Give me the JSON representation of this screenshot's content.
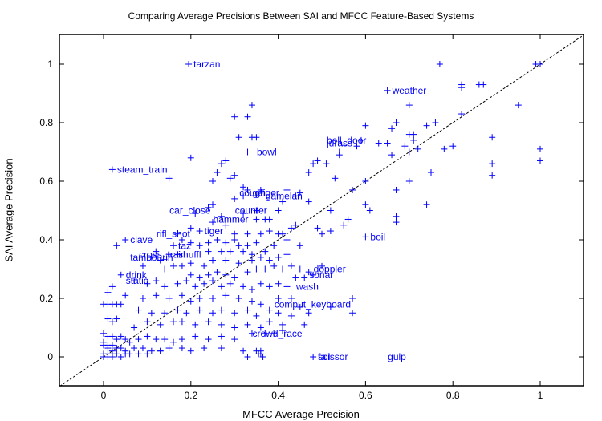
{
  "chart_data": {
    "type": "scatter",
    "title": "Comparing Average Precisions Between SAI and MFCC Feature-Based Systems",
    "xlabel": "MFCC Average Precision",
    "ylabel": "SAI Average Precision",
    "xlim": [
      -0.1,
      1.1
    ],
    "ylim": [
      -0.1,
      1.1
    ],
    "xticks": [
      "0",
      "0.2",
      "0.4",
      "0.6",
      "0.8",
      "1"
    ],
    "yticks": [
      "0",
      "0.2",
      "0.4",
      "0.6",
      "0.8",
      "1"
    ],
    "grid": false,
    "legend": null,
    "marker": "+",
    "marker_color": "#0000ff",
    "reference_line": {
      "style": "dashed",
      "color": "#000000",
      "from": [
        -0.1,
        -0.1
      ],
      "to": [
        1.1,
        1.1
      ],
      "description": "y = x"
    },
    "labeled_points": [
      {
        "label": "tarzan",
        "x": 0.195,
        "y": 1.0
      },
      {
        "label": "weather",
        "x": 0.65,
        "y": 0.91
      },
      {
        "label": "bell_door",
        "x": 0.5,
        "y": 0.74
      },
      {
        "label": "jurass",
        "x": 0.5,
        "y": 0.73
      },
      {
        "label": "bowl",
        "x": 0.34,
        "y": 0.7
      },
      {
        "label": "steam_train",
        "x": 0.02,
        "y": 0.64
      },
      {
        "label": "cough",
        "x": 0.3,
        "y": 0.56
      },
      {
        "label": "geiger",
        "x": 0.33,
        "y": 0.56
      },
      {
        "label": "gamelan",
        "x": 0.36,
        "y": 0.55
      },
      {
        "label": "car_close",
        "x": 0.14,
        "y": 0.5
      },
      {
        "label": "counter",
        "x": 0.29,
        "y": 0.5
      },
      {
        "label": "hammer",
        "x": 0.24,
        "y": 0.47
      },
      {
        "label": "tiger",
        "x": 0.22,
        "y": 0.43
      },
      {
        "label": "boil",
        "x": 0.6,
        "y": 0.41
      },
      {
        "label": "rifl_shot",
        "x": 0.11,
        "y": 0.42
      },
      {
        "label": "clave",
        "x": 0.05,
        "y": 0.4
      },
      {
        "label": "taz",
        "x": 0.16,
        "y": 0.38
      },
      {
        "label": "cross_train",
        "x": 0.07,
        "y": 0.35
      },
      {
        "label": "shuffl",
        "x": 0.16,
        "y": 0.35
      },
      {
        "label": "tambourin",
        "x": 0.05,
        "y": 0.34
      },
      {
        "label": "doppler",
        "x": 0.47,
        "y": 0.3
      },
      {
        "label": "sonar",
        "x": 0.46,
        "y": 0.28
      },
      {
        "label": "drink",
        "x": 0.04,
        "y": 0.28
      },
      {
        "label": "static",
        "x": 0.04,
        "y": 0.26
      },
      {
        "label": "wash",
        "x": 0.43,
        "y": 0.24
      },
      {
        "label": "comput_keyboard",
        "x": 0.38,
        "y": 0.18
      },
      {
        "label": "crowd_race",
        "x": 0.33,
        "y": 0.08
      },
      {
        "label": "fall",
        "x": 0.48,
        "y": 0.0
      },
      {
        "label": "scissor",
        "x": 0.48,
        "y": 0.0
      },
      {
        "label": "gulp",
        "x": 0.64,
        "y": 0.0
      }
    ],
    "points": [
      [
        0.195,
        1.0
      ],
      [
        0.65,
        0.91
      ],
      [
        0.34,
        0.86
      ],
      [
        0.33,
        0.82
      ],
      [
        0.3,
        0.82
      ],
      [
        0.7,
        0.86
      ],
      [
        0.77,
        1.0
      ],
      [
        0.82,
        0.93
      ],
      [
        0.82,
        0.92
      ],
      [
        0.86,
        0.93
      ],
      [
        0.87,
        0.93
      ],
      [
        0.95,
        0.86
      ],
      [
        0.99,
        1.0
      ],
      [
        1.0,
        1.0
      ],
      [
        0.31,
        0.75
      ],
      [
        0.34,
        0.75
      ],
      [
        0.35,
        0.75
      ],
      [
        0.6,
        0.79
      ],
      [
        0.66,
        0.78
      ],
      [
        0.67,
        0.8
      ],
      [
        0.7,
        0.76
      ],
      [
        0.71,
        0.76
      ],
      [
        0.74,
        0.79
      ],
      [
        0.76,
        0.8
      ],
      [
        0.82,
        0.83
      ],
      [
        0.89,
        0.75
      ],
      [
        1.0,
        0.71
      ],
      [
        1.0,
        0.67
      ],
      [
        0.2,
        0.68
      ],
      [
        0.02,
        0.64
      ],
      [
        0.15,
        0.61
      ],
      [
        0.27,
        0.66
      ],
      [
        0.28,
        0.67
      ],
      [
        0.33,
        0.7
      ],
      [
        0.26,
        0.63
      ],
      [
        0.25,
        0.6
      ],
      [
        0.3,
        0.62
      ],
      [
        0.29,
        0.61
      ],
      [
        0.32,
        0.58
      ],
      [
        0.36,
        0.57
      ],
      [
        0.42,
        0.57
      ],
      [
        0.47,
        0.63
      ],
      [
        0.48,
        0.66
      ],
      [
        0.49,
        0.67
      ],
      [
        0.51,
        0.66
      ],
      [
        0.54,
        0.7
      ],
      [
        0.54,
        0.69
      ],
      [
        0.58,
        0.72
      ],
      [
        0.59,
        0.74
      ],
      [
        0.63,
        0.73
      ],
      [
        0.65,
        0.73
      ],
      [
        0.66,
        0.69
      ],
      [
        0.69,
        0.72
      ],
      [
        0.7,
        0.7
      ],
      [
        0.71,
        0.74
      ],
      [
        0.72,
        0.71
      ],
      [
        0.78,
        0.71
      ],
      [
        0.8,
        0.72
      ],
      [
        0.89,
        0.66
      ],
      [
        0.89,
        0.62
      ],
      [
        0.75,
        0.63
      ],
      [
        0.7,
        0.6
      ],
      [
        0.53,
        0.61
      ],
      [
        0.57,
        0.57
      ],
      [
        0.6,
        0.6
      ],
      [
        0.6,
        0.52
      ],
      [
        0.61,
        0.5
      ],
      [
        0.67,
        0.57
      ],
      [
        0.67,
        0.48
      ],
      [
        0.74,
        0.52
      ],
      [
        0.56,
        0.47
      ],
      [
        0.52,
        0.5
      ],
      [
        0.47,
        0.53
      ],
      [
        0.45,
        0.56
      ],
      [
        0.44,
        0.55
      ],
      [
        0.41,
        0.53
      ],
      [
        0.4,
        0.5
      ],
      [
        0.37,
        0.47
      ],
      [
        0.38,
        0.47
      ],
      [
        0.4,
        0.42
      ],
      [
        0.43,
        0.44
      ],
      [
        0.44,
        0.45
      ],
      [
        0.49,
        0.44
      ],
      [
        0.5,
        0.42
      ],
      [
        0.52,
        0.43
      ],
      [
        0.55,
        0.45
      ],
      [
        0.6,
        0.41
      ],
      [
        0.45,
        0.38
      ],
      [
        0.42,
        0.4
      ],
      [
        0.41,
        0.42
      ],
      [
        0.39,
        0.38
      ],
      [
        0.37,
        0.36
      ],
      [
        0.33,
        0.57
      ],
      [
        0.32,
        0.55
      ],
      [
        0.3,
        0.54
      ],
      [
        0.25,
        0.52
      ],
      [
        0.24,
        0.51
      ],
      [
        0.27,
        0.48
      ],
      [
        0.25,
        0.46
      ],
      [
        0.21,
        0.49
      ],
      [
        0.32,
        0.49
      ],
      [
        0.35,
        0.5
      ],
      [
        0.35,
        0.47
      ],
      [
        0.28,
        0.45
      ],
      [
        0.22,
        0.43
      ],
      [
        0.2,
        0.44
      ],
      [
        0.3,
        0.42
      ],
      [
        0.33,
        0.42
      ],
      [
        0.36,
        0.42
      ],
      [
        0.38,
        0.43
      ],
      [
        0.17,
        0.42
      ],
      [
        0.18,
        0.4
      ],
      [
        0.2,
        0.39
      ],
      [
        0.22,
        0.38
      ],
      [
        0.24,
        0.39
      ],
      [
        0.26,
        0.4
      ],
      [
        0.28,
        0.39
      ],
      [
        0.3,
        0.4
      ],
      [
        0.31,
        0.38
      ],
      [
        0.33,
        0.38
      ],
      [
        0.35,
        0.39
      ],
      [
        0.24,
        0.36
      ],
      [
        0.27,
        0.36
      ],
      [
        0.29,
        0.36
      ],
      [
        0.32,
        0.36
      ],
      [
        0.34,
        0.35
      ],
      [
        0.16,
        0.38
      ],
      [
        0.05,
        0.4
      ],
      [
        0.03,
        0.38
      ],
      [
        0.12,
        0.36
      ],
      [
        0.15,
        0.35
      ],
      [
        0.17,
        0.35
      ],
      [
        0.11,
        0.34
      ],
      [
        0.13,
        0.33
      ],
      [
        0.09,
        0.31
      ],
      [
        0.14,
        0.3
      ],
      [
        0.16,
        0.31
      ],
      [
        0.18,
        0.31
      ],
      [
        0.2,
        0.32
      ],
      [
        0.23,
        0.31
      ],
      [
        0.25,
        0.33
      ],
      [
        0.28,
        0.33
      ],
      [
        0.31,
        0.32
      ],
      [
        0.34,
        0.33
      ],
      [
        0.36,
        0.34
      ],
      [
        0.38,
        0.33
      ],
      [
        0.4,
        0.34
      ],
      [
        0.42,
        0.35
      ],
      [
        0.2,
        0.28
      ],
      [
        0.22,
        0.27
      ],
      [
        0.24,
        0.28
      ],
      [
        0.26,
        0.29
      ],
      [
        0.28,
        0.28
      ],
      [
        0.3,
        0.27
      ],
      [
        0.33,
        0.29
      ],
      [
        0.35,
        0.3
      ],
      [
        0.37,
        0.3
      ],
      [
        0.39,
        0.31
      ],
      [
        0.41,
        0.3
      ],
      [
        0.43,
        0.31
      ],
      [
        0.45,
        0.3
      ],
      [
        0.47,
        0.29
      ],
      [
        0.5,
        0.31
      ],
      [
        0.44,
        0.27
      ],
      [
        0.46,
        0.27
      ],
      [
        0.48,
        0.28
      ],
      [
        0.04,
        0.28
      ],
      [
        0.07,
        0.26
      ],
      [
        0.1,
        0.25
      ],
      [
        0.12,
        0.26
      ],
      [
        0.14,
        0.24
      ],
      [
        0.17,
        0.25
      ],
      [
        0.19,
        0.26
      ],
      [
        0.21,
        0.24
      ],
      [
        0.23,
        0.25
      ],
      [
        0.25,
        0.26
      ],
      [
        0.27,
        0.24
      ],
      [
        0.29,
        0.25
      ],
      [
        0.32,
        0.24
      ],
      [
        0.34,
        0.23
      ],
      [
        0.36,
        0.25
      ],
      [
        0.38,
        0.24
      ],
      [
        0.4,
        0.25
      ],
      [
        0.42,
        0.24
      ],
      [
        0.02,
        0.24
      ],
      [
        0.01,
        0.22
      ],
      [
        0.05,
        0.21
      ],
      [
        0.09,
        0.2
      ],
      [
        0.12,
        0.21
      ],
      [
        0.15,
        0.2
      ],
      [
        0.18,
        0.21
      ],
      [
        0.2,
        0.19
      ],
      [
        0.22,
        0.2
      ],
      [
        0.25,
        0.2
      ],
      [
        0.28,
        0.21
      ],
      [
        0.31,
        0.2
      ],
      [
        0.34,
        0.19
      ],
      [
        0.36,
        0.18
      ],
      [
        0.4,
        0.2
      ],
      [
        0.43,
        0.2
      ],
      [
        0.45,
        0.17
      ],
      [
        0.0,
        0.18
      ],
      [
        0.01,
        0.18
      ],
      [
        0.02,
        0.18
      ],
      [
        0.03,
        0.18
      ],
      [
        0.04,
        0.18
      ],
      [
        0.08,
        0.16
      ],
      [
        0.11,
        0.15
      ],
      [
        0.14,
        0.15
      ],
      [
        0.17,
        0.16
      ],
      [
        0.19,
        0.15
      ],
      [
        0.22,
        0.16
      ],
      [
        0.25,
        0.15
      ],
      [
        0.27,
        0.16
      ],
      [
        0.3,
        0.15
      ],
      [
        0.33,
        0.16
      ],
      [
        0.35,
        0.14
      ],
      [
        0.38,
        0.16
      ],
      [
        0.4,
        0.15
      ],
      [
        0.43,
        0.14
      ],
      [
        0.47,
        0.15
      ],
      [
        0.52,
        0.17
      ],
      [
        0.57,
        0.15
      ],
      [
        0.01,
        0.13
      ],
      [
        0.02,
        0.12
      ],
      [
        0.03,
        0.13
      ],
      [
        0.07,
        0.1
      ],
      [
        0.1,
        0.12
      ],
      [
        0.13,
        0.11
      ],
      [
        0.16,
        0.12
      ],
      [
        0.18,
        0.12
      ],
      [
        0.21,
        0.11
      ],
      [
        0.24,
        0.12
      ],
      [
        0.27,
        0.11
      ],
      [
        0.3,
        0.1
      ],
      [
        0.33,
        0.11
      ],
      [
        0.36,
        0.1
      ],
      [
        0.38,
        0.12
      ],
      [
        0.41,
        0.11
      ],
      [
        0.46,
        0.11
      ],
      [
        0.0,
        0.08
      ],
      [
        0.01,
        0.07
      ],
      [
        0.02,
        0.07
      ],
      [
        0.03,
        0.06
      ],
      [
        0.04,
        0.07
      ],
      [
        0.05,
        0.06
      ],
      [
        0.06,
        0.05
      ],
      [
        0.08,
        0.06
      ],
      [
        0.1,
        0.07
      ],
      [
        0.12,
        0.06
      ],
      [
        0.14,
        0.06
      ],
      [
        0.16,
        0.05
      ],
      [
        0.18,
        0.06
      ],
      [
        0.21,
        0.07
      ],
      [
        0.24,
        0.06
      ],
      [
        0.27,
        0.07
      ],
      [
        0.3,
        0.06
      ],
      [
        0.34,
        0.08
      ],
      [
        0.37,
        0.08
      ],
      [
        0.39,
        0.08
      ],
      [
        0.41,
        0.09
      ],
      [
        0.0,
        0.05
      ],
      [
        0.0,
        0.04
      ],
      [
        0.01,
        0.04
      ],
      [
        0.01,
        0.03
      ],
      [
        0.02,
        0.04
      ],
      [
        0.02,
        0.02
      ],
      [
        0.03,
        0.03
      ],
      [
        0.04,
        0.03
      ],
      [
        0.05,
        0.02
      ],
      [
        0.07,
        0.03
      ],
      [
        0.09,
        0.03
      ],
      [
        0.11,
        0.02
      ],
      [
        0.13,
        0.02
      ],
      [
        0.15,
        0.03
      ],
      [
        0.18,
        0.03
      ],
      [
        0.2,
        0.02
      ],
      [
        0.23,
        0.03
      ],
      [
        0.27,
        0.03
      ],
      [
        0.32,
        0.02
      ],
      [
        0.35,
        0.02
      ],
      [
        0.36,
        0.02
      ],
      [
        0.0,
        0.01
      ],
      [
        0.0,
        0.0
      ],
      [
        0.01,
        0.0
      ],
      [
        0.01,
        0.01
      ],
      [
        0.02,
        0.0
      ],
      [
        0.02,
        0.01
      ],
      [
        0.03,
        0.01
      ],
      [
        0.04,
        0.0
      ],
      [
        0.05,
        0.01
      ],
      [
        0.06,
        0.01
      ],
      [
        0.08,
        0.01
      ],
      [
        0.1,
        0.01
      ],
      [
        0.13,
        0.02
      ],
      [
        0.33,
        0.0
      ],
      [
        0.355,
        0.01
      ],
      [
        0.36,
        0.01
      ],
      [
        0.365,
        0.0
      ],
      [
        0.48,
        0.0
      ],
      [
        0.57,
        0.2
      ],
      [
        0.67,
        0.46
      ]
    ]
  }
}
